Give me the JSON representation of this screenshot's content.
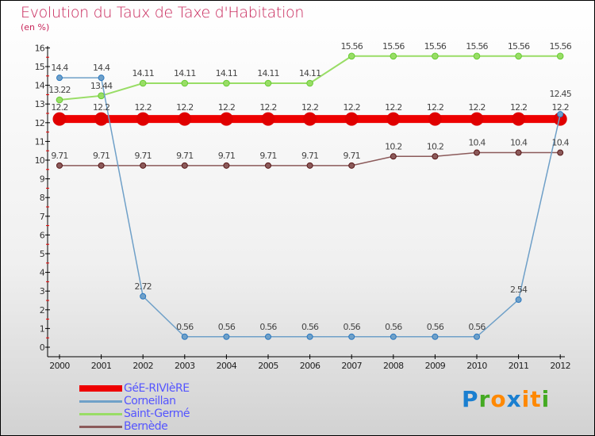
{
  "title": "Evolution du Taux de Taxe d'Habitation",
  "subtitle": "(en %)",
  "logo": {
    "text": "Proxiti",
    "letters": [
      [
        "P",
        "#1a7fd0"
      ],
      [
        "r",
        "#44aa22"
      ],
      [
        "o",
        "#ff8800"
      ],
      [
        "x",
        "#1a7fd0"
      ],
      [
        "i",
        "#ff8800"
      ],
      [
        "t",
        "#ff8800"
      ],
      [
        "i",
        "#44aa22"
      ]
    ]
  },
  "chart_data": {
    "type": "line",
    "title": "Evolution du Taux de Taxe d'Habitation",
    "ylabel": "(en %)",
    "x": [
      "2000",
      "2001",
      "2002",
      "2003",
      "2004",
      "2005",
      "2006",
      "2007",
      "2008",
      "2009",
      "2010",
      "2011",
      "2012"
    ],
    "ylim": [
      0,
      16
    ],
    "yticks": [
      "0",
      "1",
      "2",
      "3",
      "4",
      "5",
      "6",
      "7",
      "8",
      "9",
      "10",
      "11",
      "12",
      "13",
      "14",
      "15",
      "16"
    ],
    "legend": "bottom-left",
    "series": [
      {
        "name": "GéE-RIVIèRE",
        "color": "#ee0000",
        "values": [
          12.2,
          12.2,
          12.2,
          12.2,
          12.2,
          12.2,
          12.2,
          12.2,
          12.2,
          12.2,
          12.2,
          12.2,
          12.2
        ],
        "labels": [
          "12.2",
          "12.2",
          "12.2",
          "12.2",
          "12.2",
          "12.2",
          "12.2",
          "12.2",
          "12.2",
          "12.2",
          "12.2",
          "12.2",
          "12.2"
        ]
      },
      {
        "name": "Corneillan",
        "color": "#6fa0c8",
        "values": [
          14.4,
          14.4,
          2.72,
          0.56,
          0.56,
          0.56,
          0.56,
          0.56,
          0.56,
          0.56,
          0.56,
          2.54,
          12.45
        ],
        "labels": [
          "14.4",
          "14.4",
          "2.72",
          "0.56",
          "0.56",
          "0.56",
          "0.56",
          "0.56",
          "0.56",
          "0.56",
          "0.56",
          "2.54",
          "12.45"
        ]
      },
      {
        "name": "Saint-Germé",
        "color": "#99dd66",
        "values": [
          13.22,
          13.44,
          14.11,
          14.11,
          14.11,
          14.11,
          14.11,
          15.56,
          15.56,
          15.56,
          15.56,
          15.56,
          15.56
        ],
        "labels": [
          "13.22",
          "13.44",
          "14.11",
          "14.11",
          "14.11",
          "14.11",
          "14.11",
          "15.56",
          "15.56",
          "15.56",
          "15.56",
          "15.56",
          "15.56"
        ]
      },
      {
        "name": "Bernède",
        "color": "#8b5a5a",
        "values": [
          9.71,
          9.71,
          9.71,
          9.71,
          9.71,
          9.71,
          9.71,
          9.71,
          10.2,
          10.2,
          10.4,
          10.4,
          10.4
        ],
        "labels": [
          "9.71",
          "9.71",
          "9.71",
          "9.71",
          "9.71",
          "9.71",
          "9.71",
          "9.71",
          "10.2",
          "10.2",
          "10.4",
          "10.4",
          "10.4"
        ]
      }
    ]
  }
}
